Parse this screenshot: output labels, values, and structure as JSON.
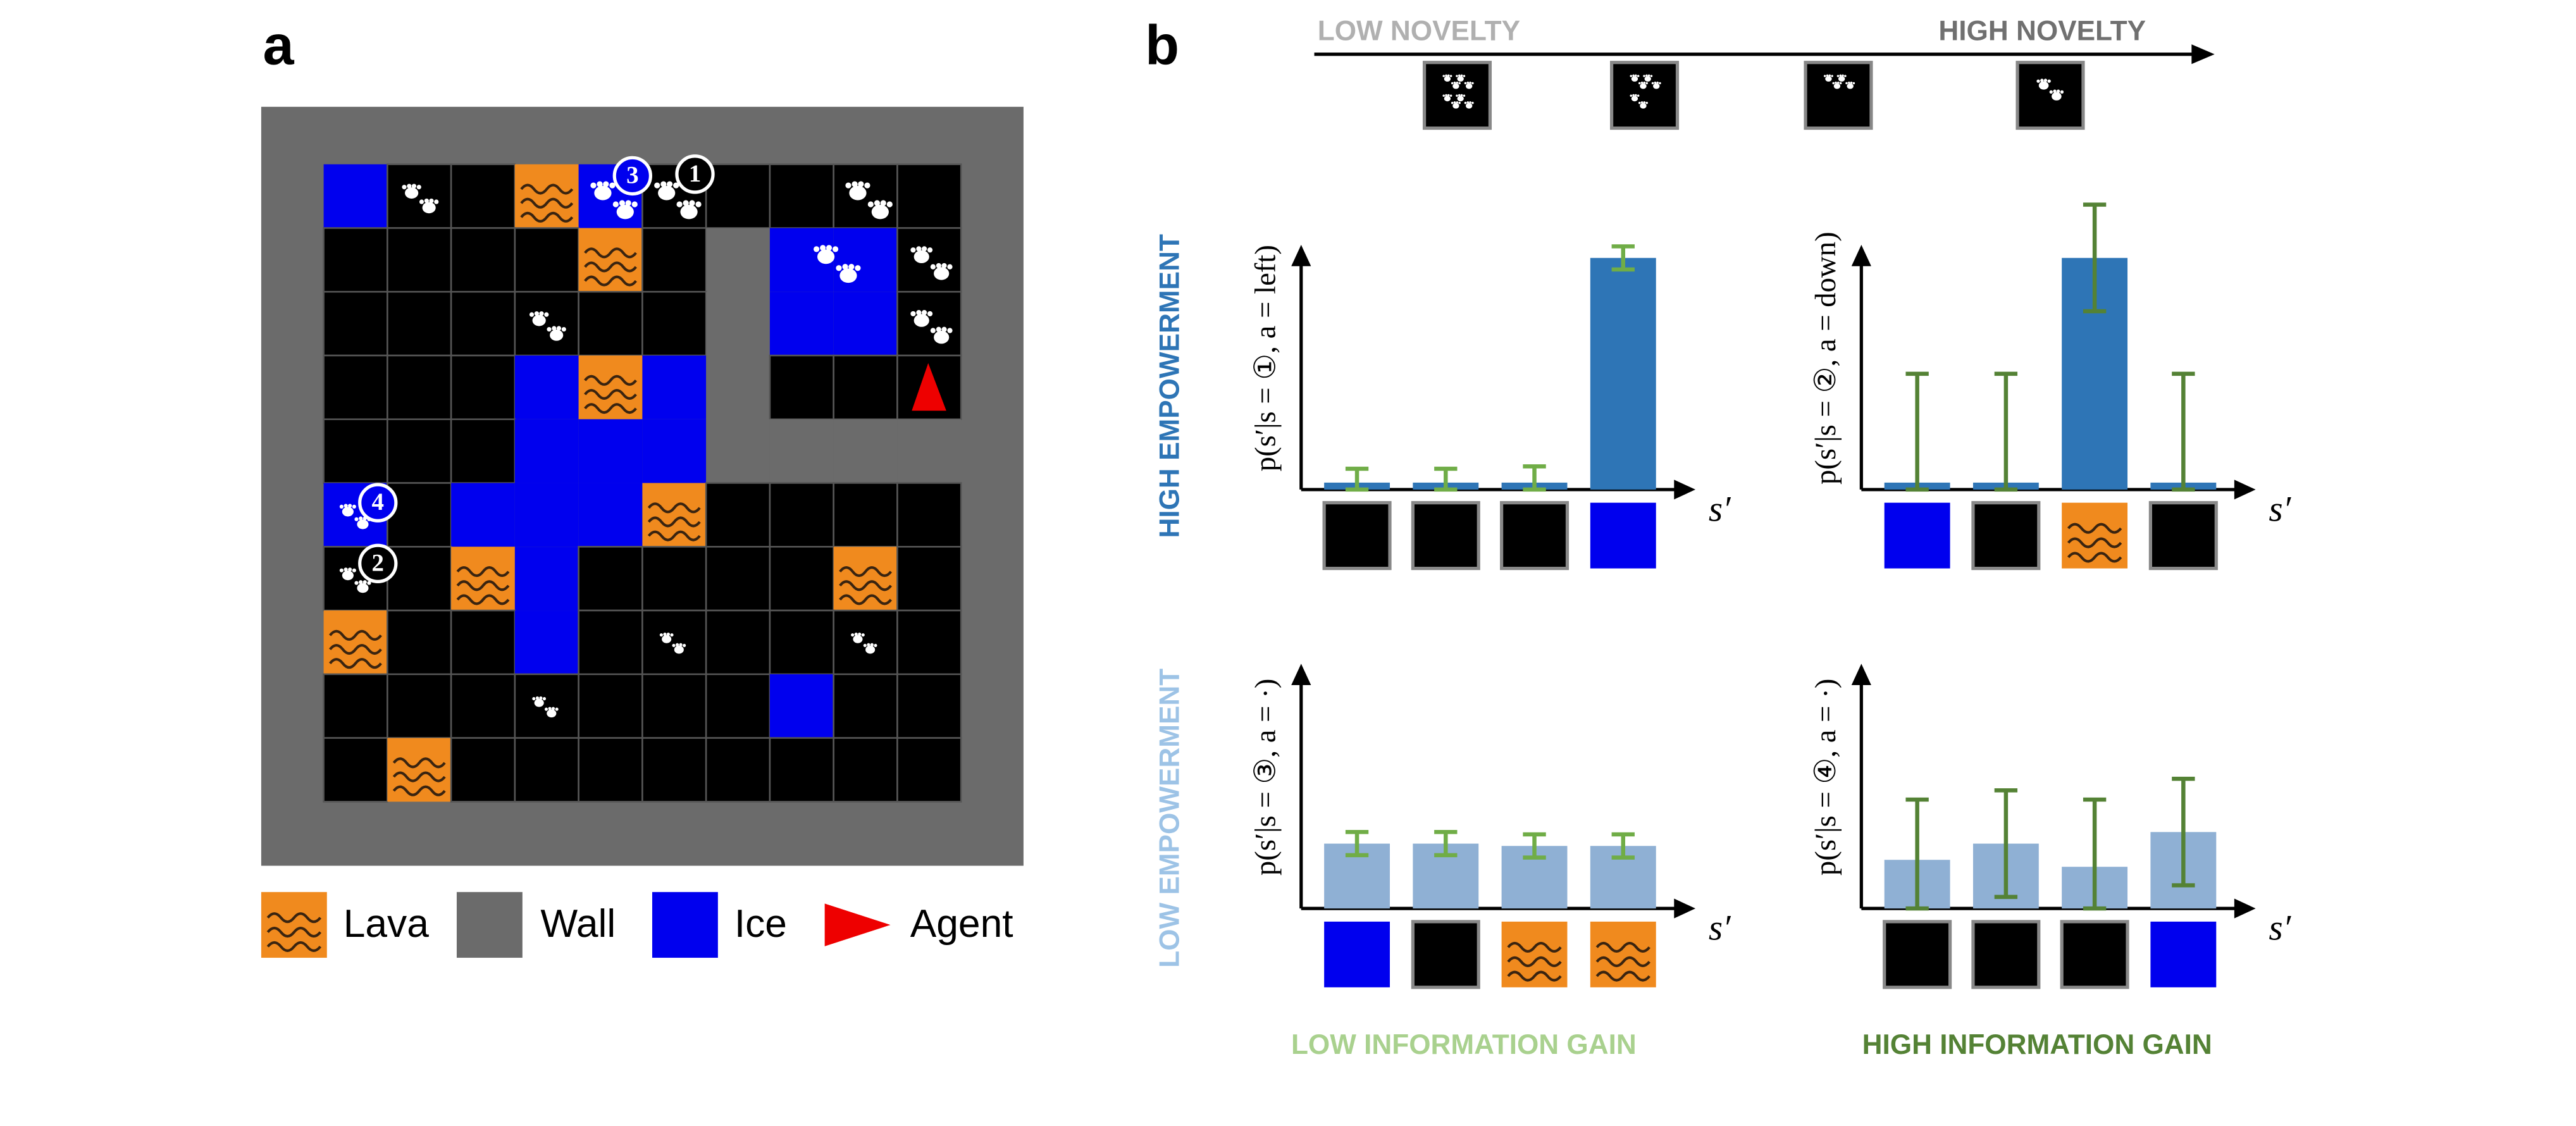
{
  "panel_labels": [
    "a",
    "b"
  ],
  "gridworld": {
    "markers": [
      "3",
      "1",
      "4",
      "2"
    ]
  },
  "legend": [
    "Lava",
    "Wall",
    "Ice",
    "Agent"
  ],
  "novelty_axis": {
    "low": "LOW NOVELTY",
    "high": "HIGH NOVELTY"
  },
  "row_labels": [
    "HIGH EMPOWERMENT",
    "LOW EMPOWERMENT"
  ],
  "column_labels": [
    "LOW INFORMATION GAIN",
    "HIGH INFORMATION GAIN"
  ],
  "chart_data": [
    {
      "type": "bar",
      "ylabel": "p(s′|s = ①, a = left)",
      "xlabel": "s′",
      "ylim": [
        0,
        1
      ],
      "color": "#2e75b6",
      "error_color": "#70ad47",
      "values": [
        0.03,
        0.03,
        0.03,
        1.0
      ],
      "errors": [
        0.06,
        0.06,
        0.07,
        0.05
      ]
    },
    {
      "type": "bar",
      "ylabel": "p(s′|s = ②, a = down)",
      "xlabel": "s′",
      "ylim": [
        0,
        1
      ],
      "color": "#2e75b6",
      "error_color": "#548235",
      "values": [
        0.03,
        0.03,
        1.0,
        0.03
      ],
      "errors": [
        0.47,
        0.47,
        0.23,
        0.47
      ]
    },
    {
      "type": "bar",
      "ylabel": "p(s′|s = ③, a = ·)",
      "xlabel": "s′",
      "ylim": [
        0,
        1
      ],
      "color": "#8fb0d4",
      "error_color": "#70ad47",
      "values": [
        0.28,
        0.28,
        0.27,
        0.27
      ],
      "errors": [
        0.05,
        0.05,
        0.05,
        0.05
      ]
    },
    {
      "type": "bar",
      "ylabel": "p(s′|s = ④, a = ·)",
      "xlabel": "s′",
      "ylim": [
        0,
        1
      ],
      "color": "#8fb0d4",
      "error_color": "#548235",
      "values": [
        0.21,
        0.28,
        0.18,
        0.33
      ],
      "errors": [
        0.26,
        0.23,
        0.29,
        0.23
      ]
    }
  ]
}
